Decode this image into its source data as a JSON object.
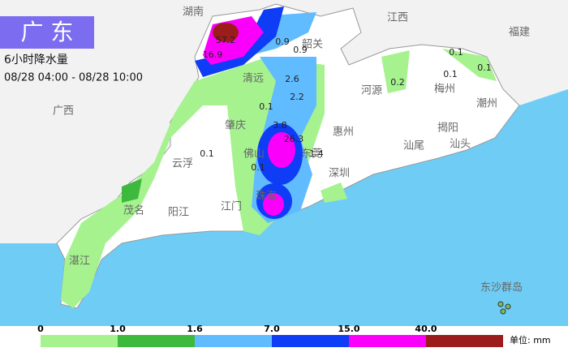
{
  "header": {
    "title": "广 东",
    "subtitle": "6小时降水量",
    "period": "08/28 04:00 - 08/28 10:00"
  },
  "places": [
    "湖南",
    "江西",
    "福建",
    "广西",
    "韶关",
    "清远",
    "河源",
    "梅州",
    "潮州",
    "揭阳",
    "汕头",
    "汕尾",
    "惠州",
    "肇庆",
    "云浮",
    "阳江",
    "茂名",
    "湛江",
    "江门",
    "珠海",
    "深圳",
    "东莞",
    "佛山",
    "东沙群岛"
  ],
  "stations": [
    57.2,
    16.9,
    0.9,
    0.9,
    2.6,
    2.2,
    0.1,
    0.1,
    0.2,
    0.1,
    0.1,
    3.8,
    26.3,
    1.4,
    0.1,
    0.1
  ],
  "legend": {
    "thresholds": [
      0,
      {
        "value": 1,
        "label": "1.0"
      },
      1.6,
      {
        "value": 7,
        "label": "7.0"
      },
      {
        "value": 15,
        "label": "15.0"
      },
      {
        "value": 40,
        "label": "40.0"
      }
    ],
    "colors": [
      "#a6f28f",
      "#3dba3d",
      "#61bbff",
      "#0f3cf5",
      "#fa00fa",
      "#9c1c1c"
    ],
    "unit": "单位: mm"
  }
}
